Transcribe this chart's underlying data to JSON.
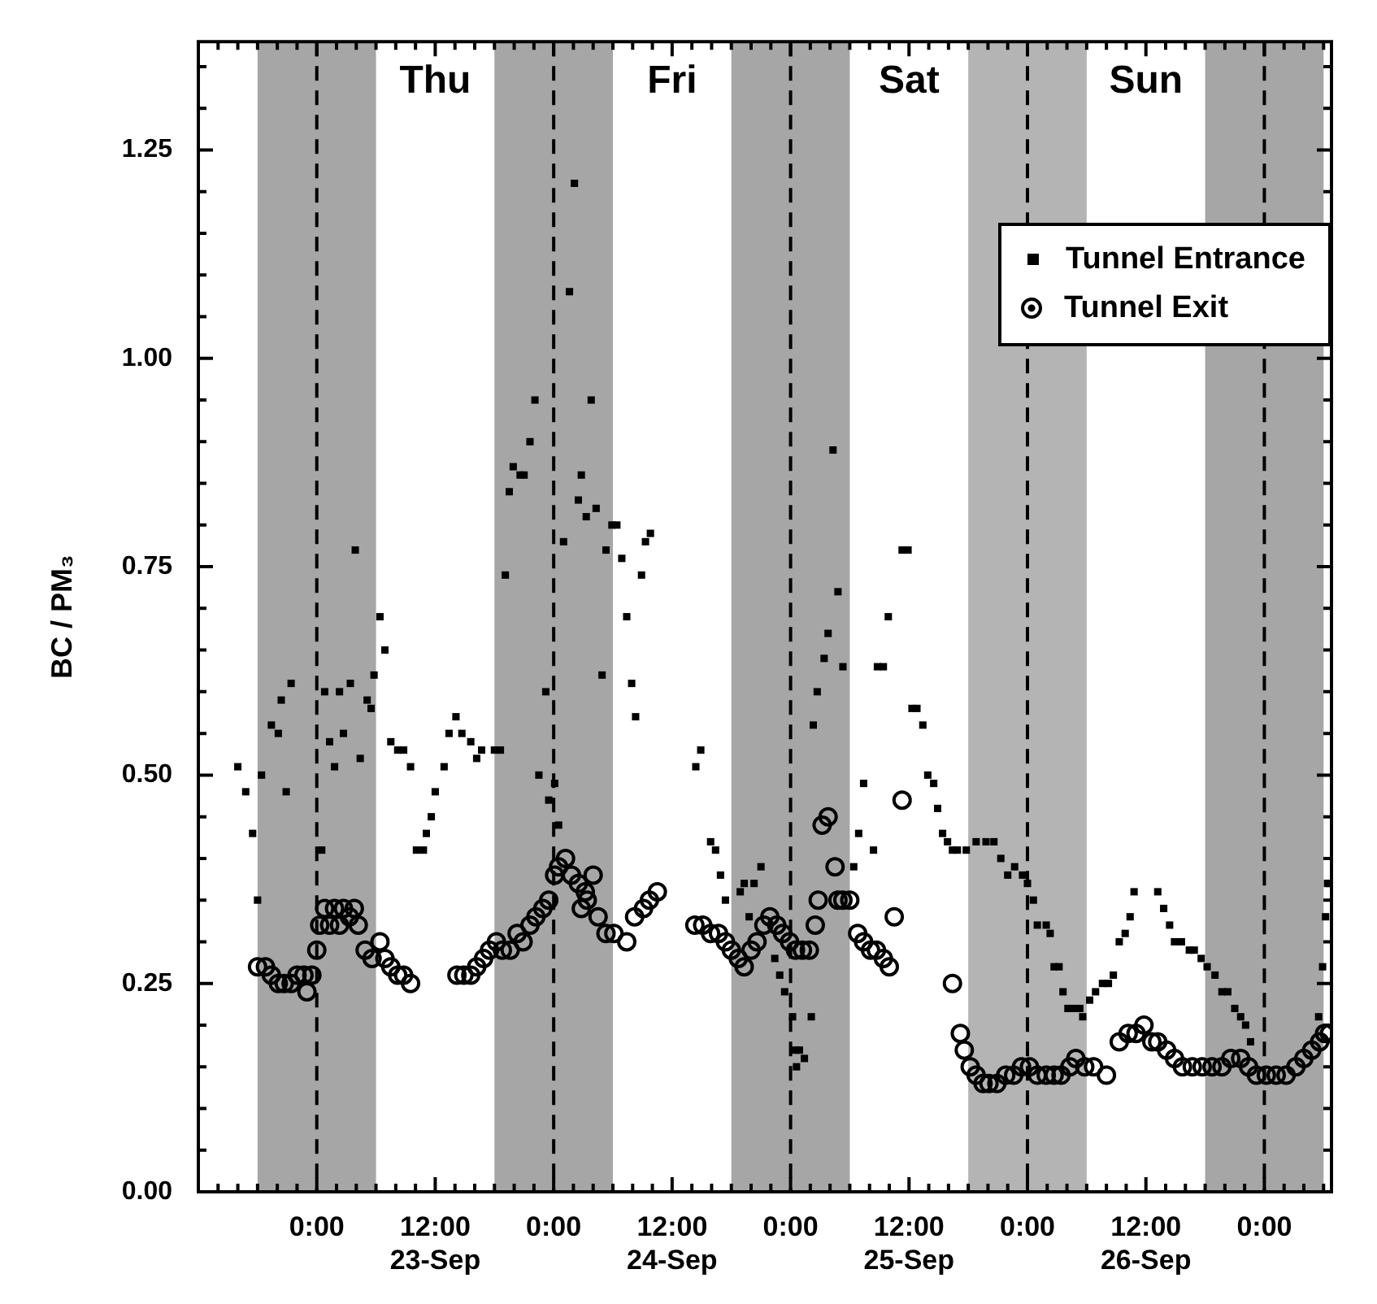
{
  "chart_data": {
    "type": "scatter",
    "ylabel": "BC / PM₃",
    "xlim": [
      "--09-22T12:00",
      "--09-27T06:48"
    ],
    "xticks": [
      {
        "value": "--09-22T12:00",
        "label": null
      },
      {
        "value": "--09-22T14:00",
        "label": null
      },
      {
        "value": "--09-22T16:00",
        "label": null
      },
      {
        "value": "--09-22T18:00",
        "label": null
      },
      {
        "value": "--09-22T20:00",
        "label": null
      },
      {
        "value": "--09-22T22:00",
        "label": null
      },
      {
        "value": "--09-23T00:00",
        "label": "0:00"
      },
      {
        "value": "--09-23T02:00",
        "label": null
      },
      {
        "value": "--09-23T04:00",
        "label": null
      },
      {
        "value": "--09-23T06:00",
        "label": null
      },
      {
        "value": "--09-23T08:00",
        "label": null
      },
      {
        "value": "--09-23T10:00",
        "label": null
      },
      {
        "value": "--09-23T12:00",
        "label": "12:00\n23-Sep"
      },
      {
        "value": "--09-23T14:00",
        "label": null
      },
      {
        "value": "--09-23T16:00",
        "label": null
      },
      {
        "value": "--09-23T18:00",
        "label": null
      },
      {
        "value": "--09-23T20:00",
        "label": null
      },
      {
        "value": "--09-23T22:00",
        "label": null
      },
      {
        "value": "--09-24T00:00",
        "label": "0:00"
      },
      {
        "value": "--09-24T02:00",
        "label": null
      },
      {
        "value": "--09-24T04:00",
        "label": null
      },
      {
        "value": "--09-24T06:00",
        "label": null
      },
      {
        "value": "--09-24T08:00",
        "label": null
      },
      {
        "value": "--09-24T10:00",
        "label": null
      },
      {
        "value": "--09-24T12:00",
        "label": "12:00\n24-Sep"
      },
      {
        "value": "--09-24T14:00",
        "label": null
      },
      {
        "value": "--09-24T16:00",
        "label": null
      },
      {
        "value": "--09-24T18:00",
        "label": null
      },
      {
        "value": "--09-24T20:00",
        "label": null
      },
      {
        "value": "--09-24T22:00",
        "label": null
      },
      {
        "value": "--09-25T00:00",
        "label": "0:00"
      },
      {
        "value": "--09-25T02:00",
        "label": null
      },
      {
        "value": "--09-25T04:00",
        "label": null
      },
      {
        "value": "--09-25T06:00",
        "label": null
      },
      {
        "value": "--09-25T08:00",
        "label": null
      },
      {
        "value": "--09-25T10:00",
        "label": null
      },
      {
        "value": "--09-25T12:00",
        "label": "12:00\n25-Sep"
      },
      {
        "value": "--09-25T14:00",
        "label": null
      },
      {
        "value": "--09-25T16:00",
        "label": null
      },
      {
        "value": "--09-25T18:00",
        "label": null
      },
      {
        "value": "--09-25T20:00",
        "label": null
      },
      {
        "value": "--09-25T22:00",
        "label": null
      },
      {
        "value": "--09-26T00:00",
        "label": "0:00"
      },
      {
        "value": "--09-26T02:00",
        "label": null
      },
      {
        "value": "--09-26T04:00",
        "label": null
      },
      {
        "value": "--09-26T06:00",
        "label": null
      },
      {
        "value": "--09-26T08:00",
        "label": null
      },
      {
        "value": "--09-26T10:00",
        "label": null
      },
      {
        "value": "--09-26T12:00",
        "label": "12:00\n26-Sep"
      },
      {
        "value": "--09-26T14:00",
        "label": null
      },
      {
        "value": "--09-26T16:00",
        "label": null
      },
      {
        "value": "--09-26T18:00",
        "label": null
      },
      {
        "value": "--09-26T20:00",
        "label": null
      },
      {
        "value": "--09-26T22:00",
        "label": null
      },
      {
        "value": "--09-27T00:00",
        "label": "0:00"
      },
      {
        "value": "--09-27T02:00",
        "label": null
      },
      {
        "value": "--09-27T04:00",
        "label": null
      },
      {
        "value": "--09-27T06:00",
        "label": null
      }
    ],
    "ylim": [
      0,
      1.38
    ],
    "yticks": [
      {
        "value": 0,
        "label": "0.00"
      },
      {
        "value": 0.05,
        "label": null
      },
      {
        "value": 0.1,
        "label": null
      },
      {
        "value": 0.15,
        "label": null
      },
      {
        "value": 0.2,
        "label": null
      },
      {
        "value": 0.25,
        "label": "0.25"
      },
      {
        "value": 0.3,
        "label": null
      },
      {
        "value": 0.35,
        "label": null
      },
      {
        "value": 0.4,
        "label": null
      },
      {
        "value": 0.45,
        "label": null
      },
      {
        "value": 0.5,
        "label": "0.50"
      },
      {
        "value": 0.55,
        "label": null
      },
      {
        "value": 0.6,
        "label": null
      },
      {
        "value": 0.65,
        "label": null
      },
      {
        "value": 0.7,
        "label": null
      },
      {
        "value": 0.75,
        "label": "0.75"
      },
      {
        "value": 0.8,
        "label": null
      },
      {
        "value": 0.85,
        "label": null
      },
      {
        "value": 0.9,
        "label": null
      },
      {
        "value": 0.95,
        "label": null
      },
      {
        "value": 1,
        "label": "1.00"
      },
      {
        "value": 1.05,
        "label": null
      },
      {
        "value": 1.1,
        "label": null
      },
      {
        "value": 1.15,
        "label": null
      },
      {
        "value": 1.2,
        "label": null
      },
      {
        "value": 1.25,
        "label": "1.25"
      },
      {
        "value": 1.3,
        "label": null
      },
      {
        "value": 1.35,
        "label": null
      }
    ],
    "grid": false,
    "legend": "top right",
    "bands": [
      {
        "axis": "x",
        "from": "--09-22T18:00",
        "to": "--09-23T06:00",
        "color": "#a6a6a6"
      },
      {
        "axis": "x",
        "from": "--09-23T18:00",
        "to": "--09-24T06:00",
        "color": "#a6a6a6"
      },
      {
        "axis": "x",
        "from": "--09-24T18:00",
        "to": "--09-25T06:00",
        "color": "#a6a6a6"
      },
      {
        "axis": "x",
        "from": "--09-25T18:00",
        "to": "--09-26T06:00",
        "color": "#b4b4b4"
      },
      {
        "axis": "x",
        "from": "--09-26T18:00",
        "to": "--09-27T06:00",
        "color": "#a6a6a6"
      }
    ],
    "ref_lines": [
      {
        "axis": "x",
        "value": "--09-23T00:00",
        "color": "#000000",
        "line_style": "dashed"
      },
      {
        "axis": "x",
        "value": "--09-24T00:00",
        "color": "#000000",
        "line_style": "dashed"
      },
      {
        "axis": "x",
        "value": "--09-25T00:00",
        "color": "#000000",
        "line_style": "dashed"
      },
      {
        "axis": "x",
        "value": "--09-26T00:00",
        "color": "#000000",
        "line_style": "dashed"
      },
      {
        "axis": "x",
        "value": "--09-27T00:00",
        "color": "#000000",
        "line_style": "dashed"
      }
    ],
    "annotations": [
      "Thu",
      "Fri",
      "Sat",
      "Sun"
    ],
    "series": [
      {
        "name": "Tunnel Entrance",
        "color": "#000000",
        "marker": "square",
        "x": [
          "--09-22T16:00",
          "--09-22T16:48",
          "--09-22T17:30",
          "--09-22T18:00",
          "--09-22T18:24",
          "--09-22T19:24",
          "--09-22T20:06",
          "--09-22T20:24",
          "--09-22T20:54",
          "--09-22T21:24",
          "--09-23T00:30",
          "--09-23T00:48",
          "--09-23T01:18",
          "--09-23T01:48",
          "--09-23T02:18",
          "--09-23T02:42",
          "--09-23T03:24",
          "--09-23T03:54",
          "--09-23T04:24",
          "--09-23T05:06",
          "--09-23T05:30",
          "--09-23T05:48",
          "--09-23T06:24",
          "--09-23T06:54",
          "--09-23T07:30",
          "--09-23T08:12",
          "--09-23T08:48",
          "--09-23T09:30",
          "--09-23T10:06",
          "--09-23T10:48",
          "--09-23T11:06",
          "--09-23T11:36",
          "--09-23T12:00",
          "--09-23T12:54",
          "--09-23T13:24",
          "--09-23T14:06",
          "--09-23T14:42",
          "--09-23T15:36",
          "--09-23T16:12",
          "--09-23T16:42",
          "--09-23T18:00",
          "--09-23T18:36",
          "--09-23T19:06",
          "--09-23T19:30",
          "--09-23T19:54",
          "--09-23T20:36",
          "--09-23T21:00",
          "--09-23T21:36",
          "--09-23T22:06",
          "--09-23T22:30",
          "--09-23T23:12",
          "--09-23T23:30",
          "--09-24T00:06",
          "--09-24T00:30",
          "--09-24T01:00",
          "--09-24T01:36",
          "--09-24T02:06",
          "--09-24T02:30",
          "--09-24T02:48",
          "--09-24T03:18",
          "--09-24T03:48",
          "--09-24T04:18",
          "--09-24T04:54",
          "--09-24T05:18",
          "--09-24T05:54",
          "--09-24T06:24",
          "--09-24T06:54",
          "--09-24T07:24",
          "--09-24T07:54",
          "--09-24T08:18",
          "--09-24T08:54",
          "--09-24T09:18",
          "--09-24T09:48",
          "--09-24T14:24",
          "--09-24T14:54",
          "--09-24T15:54",
          "--09-24T16:24",
          "--09-24T16:54",
          "--09-24T17:24",
          "--09-24T18:54",
          "--09-24T19:18",
          "--09-24T19:48",
          "--09-24T20:18",
          "--09-24T21:00",
          "--09-24T22:24",
          "--09-24T22:54",
          "--09-24T23:24",
          "--09-25T00:12",
          "--09-25T00:30",
          "--09-25T00:36",
          "--09-25T00:54",
          "--09-25T01:24",
          "--09-25T02:06",
          "--09-25T02:18",
          "--09-25T02:42",
          "--09-25T03:24",
          "--09-25T03:48",
          "--09-25T04:18",
          "--09-25T04:48",
          "--09-25T05:18",
          "--09-25T06:24",
          "--09-25T06:54",
          "--09-25T07:24",
          "--09-25T08:24",
          "--09-25T08:48",
          "--09-25T09:24",
          "--09-25T09:54",
          "--09-25T11:18",
          "--09-25T11:54",
          "--09-25T12:18",
          "--09-25T12:48",
          "--09-25T13:24",
          "--09-25T13:54",
          "--09-25T14:30",
          "--09-25T14:54",
          "--09-25T15:24",
          "--09-25T15:54",
          "--09-25T16:24",
          "--09-25T16:54",
          "--09-25T17:48",
          "--09-25T18:48",
          "--09-25T19:48",
          "--09-25T20:36",
          "--09-25T21:18",
          "--09-25T22:00",
          "--09-25T22:42",
          "--09-25T23:30",
          "--09-26T00:00",
          "--09-26T00:36",
          "--09-26T01:00",
          "--09-26T01:54",
          "--09-26T02:18",
          "--09-26T02:42",
          "--09-26T03:12",
          "--09-26T03:36",
          "--09-26T04:06",
          "--09-26T04:42",
          "--09-26T05:18",
          "--09-26T05:36",
          "--09-26T06:18",
          "--09-26T06:54",
          "--09-26T07:36",
          "--09-26T08:12",
          "--09-26T08:42",
          "--09-26T09:18",
          "--09-26T09:54",
          "--09-26T10:24",
          "--09-26T10:48",
          "--09-26T13:12",
          "--09-26T13:48",
          "--09-26T14:24",
          "--09-26T14:54",
          "--09-26T15:36",
          "--09-26T16:24",
          "--09-26T16:54",
          "--09-26T17:36",
          "--09-26T18:12",
          "--09-26T19:00",
          "--09-26T19:42",
          "--09-26T20:18",
          "--09-26T21:00",
          "--09-26T21:36",
          "--09-26T22:06",
          "--09-26T22:36",
          "--09-27T05:30",
          "--09-27T05:54",
          "--09-27T06:12",
          "--09-27T06:24",
          "--09-27T06:36"
        ],
        "values": [
          0.51,
          0.48,
          0.43,
          0.35,
          0.5,
          0.56,
          0.55,
          0.59,
          0.48,
          0.61,
          0.41,
          0.6,
          0.54,
          0.51,
          0.6,
          0.55,
          0.61,
          0.77,
          0.52,
          0.59,
          0.58,
          0.62,
          0.69,
          0.65,
          0.54,
          0.53,
          0.53,
          0.51,
          0.41,
          0.41,
          0.43,
          0.45,
          0.48,
          0.51,
          0.55,
          0.57,
          0.55,
          0.54,
          0.52,
          0.53,
          0.53,
          0.53,
          0.74,
          0.84,
          0.87,
          0.86,
          0.86,
          0.9,
          0.95,
          0.5,
          0.6,
          0.47,
          0.49,
          0.44,
          0.78,
          1.08,
          1.21,
          0.83,
          0.86,
          0.81,
          0.95,
          0.82,
          0.62,
          0.77,
          0.8,
          0.8,
          0.76,
          0.69,
          0.61,
          0.57,
          0.74,
          0.78,
          0.79,
          0.51,
          0.53,
          0.42,
          0.41,
          0.38,
          0.35,
          0.36,
          0.37,
          0.33,
          0.37,
          0.39,
          0.28,
          0.26,
          0.24,
          0.21,
          0.17,
          0.15,
          0.17,
          0.16,
          0.21,
          0.56,
          0.6,
          0.64,
          0.67,
          0.89,
          0.72,
          0.63,
          0.39,
          0.43,
          0.49,
          0.41,
          0.63,
          0.63,
          0.69,
          0.77,
          0.77,
          0.58,
          0.58,
          0.56,
          0.5,
          0.49,
          0.46,
          0.43,
          0.42,
          0.41,
          0.41,
          0.41,
          0.42,
          0.42,
          0.42,
          0.4,
          0.38,
          0.39,
          0.38,
          0.37,
          0.35,
          0.32,
          0.32,
          0.31,
          0.27,
          0.27,
          0.24,
          0.22,
          0.22,
          0.22,
          0.21,
          0.23,
          0.24,
          0.25,
          0.25,
          0.26,
          0.3,
          0.31,
          0.33,
          0.36,
          0.36,
          0.34,
          0.32,
          0.3,
          0.3,
          0.29,
          0.29,
          0.28,
          0.27,
          0.26,
          0.24,
          0.24,
          0.22,
          0.21,
          0.2,
          0.18,
          0.21,
          0.27,
          0.33,
          0.37,
          0.37
        ]
      },
      {
        "name": "Tunnel Exit",
        "color": "#000000",
        "marker": "circle",
        "x": [
          "--09-22T18:00",
          "--09-22T18:48",
          "--09-22T19:24",
          "--09-22T20:06",
          "--09-22T20:42",
          "--09-22T21:24",
          "--09-22T22:00",
          "--09-22T22:42",
          "--09-22T23:00",
          "--09-22T23:30",
          "--09-23T00:00",
          "--09-23T00:18",
          "--09-23T00:48",
          "--09-23T01:18",
          "--09-23T01:48",
          "--09-23T02:18",
          "--09-23T02:42",
          "--09-23T03:18",
          "--09-23T03:48",
          "--09-23T04:12",
          "--09-23T04:54",
          "--09-23T05:36",
          "--09-23T06:24",
          "--09-23T06:54",
          "--09-23T07:30",
          "--09-23T08:12",
          "--09-23T08:48",
          "--09-23T09:30",
          "--09-23T14:12",
          "--09-23T14:54",
          "--09-23T15:36",
          "--09-23T16:12",
          "--09-23T16:54",
          "--09-23T17:30",
          "--09-23T18:12",
          "--09-23T18:48",
          "--09-23T19:36",
          "--09-23T20:18",
          "--09-23T20:54",
          "--09-23T21:36",
          "--09-23T22:12",
          "--09-23T22:54",
          "--09-23T23:30",
          "--09-24T00:06",
          "--09-24T00:30",
          "--09-24T01:12",
          "--09-24T01:48",
          "--09-24T02:30",
          "--09-24T02:48",
          "--09-24T03:12",
          "--09-24T03:24",
          "--09-24T04:00",
          "--09-24T04:30",
          "--09-24T05:18",
          "--09-24T06:06",
          "--09-24T07:24",
          "--09-24T08:12",
          "--09-24T09:06",
          "--09-24T09:42",
          "--09-24T10:30",
          "--09-24T14:18",
          "--09-24T15:06",
          "--09-24T15:54",
          "--09-24T16:42",
          "--09-24T17:24",
          "--09-24T18:00",
          "--09-24T18:42",
          "--09-24T19:18",
          "--09-24T20:00",
          "--09-24T20:36",
          "--09-24T21:18",
          "--09-24T21:54",
          "--09-24T22:36",
          "--09-24T23:12",
          "--09-24T23:54",
          "--09-25T00:30",
          "--09-25T01:12",
          "--09-25T01:54",
          "--09-25T02:30",
          "--09-25T02:48",
          "--09-25T03:12",
          "--09-25T03:48",
          "--09-25T04:30",
          "--09-25T04:48",
          "--09-25T05:18",
          "--09-25T06:00",
          "--09-25T06:48",
          "--09-25T07:24",
          "--09-25T08:06",
          "--09-25T08:42",
          "--09-25T09:24",
          "--09-25T10:00",
          "--09-25T10:30",
          "--09-25T11:18",
          "--09-25T16:24",
          "--09-25T17:12",
          "--09-25T17:36",
          "--09-25T18:12",
          "--09-25T18:48",
          "--09-25T19:30",
          "--09-25T20:06",
          "--09-25T20:54",
          "--09-25T21:48",
          "--09-25T22:36",
          "--09-25T23:24",
          "--09-26T00:12",
          "--09-26T01:00",
          "--09-26T01:54",
          "--09-26T02:42",
          "--09-26T03:24",
          "--09-26T04:18",
          "--09-26T04:54",
          "--09-26T05:48",
          "--09-26T06:42",
          "--09-26T08:00",
          "--09-26T09:18",
          "--09-26T10:12",
          "--09-26T11:00",
          "--09-26T11:48",
          "--09-26T12:36",
          "--09-26T13:12",
          "--09-26T14:06",
          "--09-26T14:54",
          "--09-26T15:42",
          "--09-26T16:42",
          "--09-26T17:42",
          "--09-26T18:42",
          "--09-26T19:42",
          "--09-26T20:36",
          "--09-26T21:36",
          "--09-26T22:24",
          "--09-26T23:12",
          "--09-27T00:12",
          "--09-27T01:12",
          "--09-27T02:12",
          "--09-27T03:12",
          "--09-27T04:00",
          "--09-27T04:48",
          "--09-27T05:36",
          "--09-27T06:06",
          "--09-27T06:36"
        ],
        "values": [
          0.27,
          0.27,
          0.26,
          0.25,
          0.25,
          0.25,
          0.26,
          0.26,
          0.24,
          0.26,
          0.29,
          0.32,
          0.34,
          0.32,
          0.34,
          0.32,
          0.34,
          0.33,
          0.34,
          0.32,
          0.29,
          0.28,
          0.3,
          0.28,
          0.27,
          0.26,
          0.26,
          0.25,
          0.26,
          0.26,
          0.26,
          0.27,
          0.28,
          0.29,
          0.3,
          0.29,
          0.29,
          0.31,
          0.3,
          0.32,
          0.33,
          0.34,
          0.35,
          0.38,
          0.39,
          0.4,
          0.38,
          0.37,
          0.34,
          0.36,
          0.35,
          0.38,
          0.33,
          0.31,
          0.31,
          0.3,
          0.33,
          0.34,
          0.35,
          0.36,
          0.32,
          0.32,
          0.31,
          0.31,
          0.3,
          0.29,
          0.28,
          0.27,
          0.29,
          0.3,
          0.32,
          0.33,
          0.32,
          0.31,
          0.3,
          0.29,
          0.29,
          0.29,
          0.32,
          0.35,
          0.44,
          0.45,
          0.39,
          0.35,
          0.35,
          0.35,
          0.31,
          0.3,
          0.29,
          0.29,
          0.28,
          0.27,
          0.33,
          0.47,
          0.25,
          0.19,
          0.17,
          0.15,
          0.14,
          0.13,
          0.13,
          0.13,
          0.14,
          0.14,
          0.15,
          0.15,
          0.14,
          0.14,
          0.14,
          0.14,
          0.15,
          0.16,
          0.15,
          0.15,
          0.14,
          0.18,
          0.19,
          0.19,
          0.2,
          0.18,
          0.18,
          0.17,
          0.16,
          0.15,
          0.15,
          0.15,
          0.15,
          0.15,
          0.16,
          0.16,
          0.15,
          0.14,
          0.14,
          0.14,
          0.14,
          0.15,
          0.16,
          0.17,
          0.18,
          0.19,
          0.19
        ]
      }
    ]
  }
}
